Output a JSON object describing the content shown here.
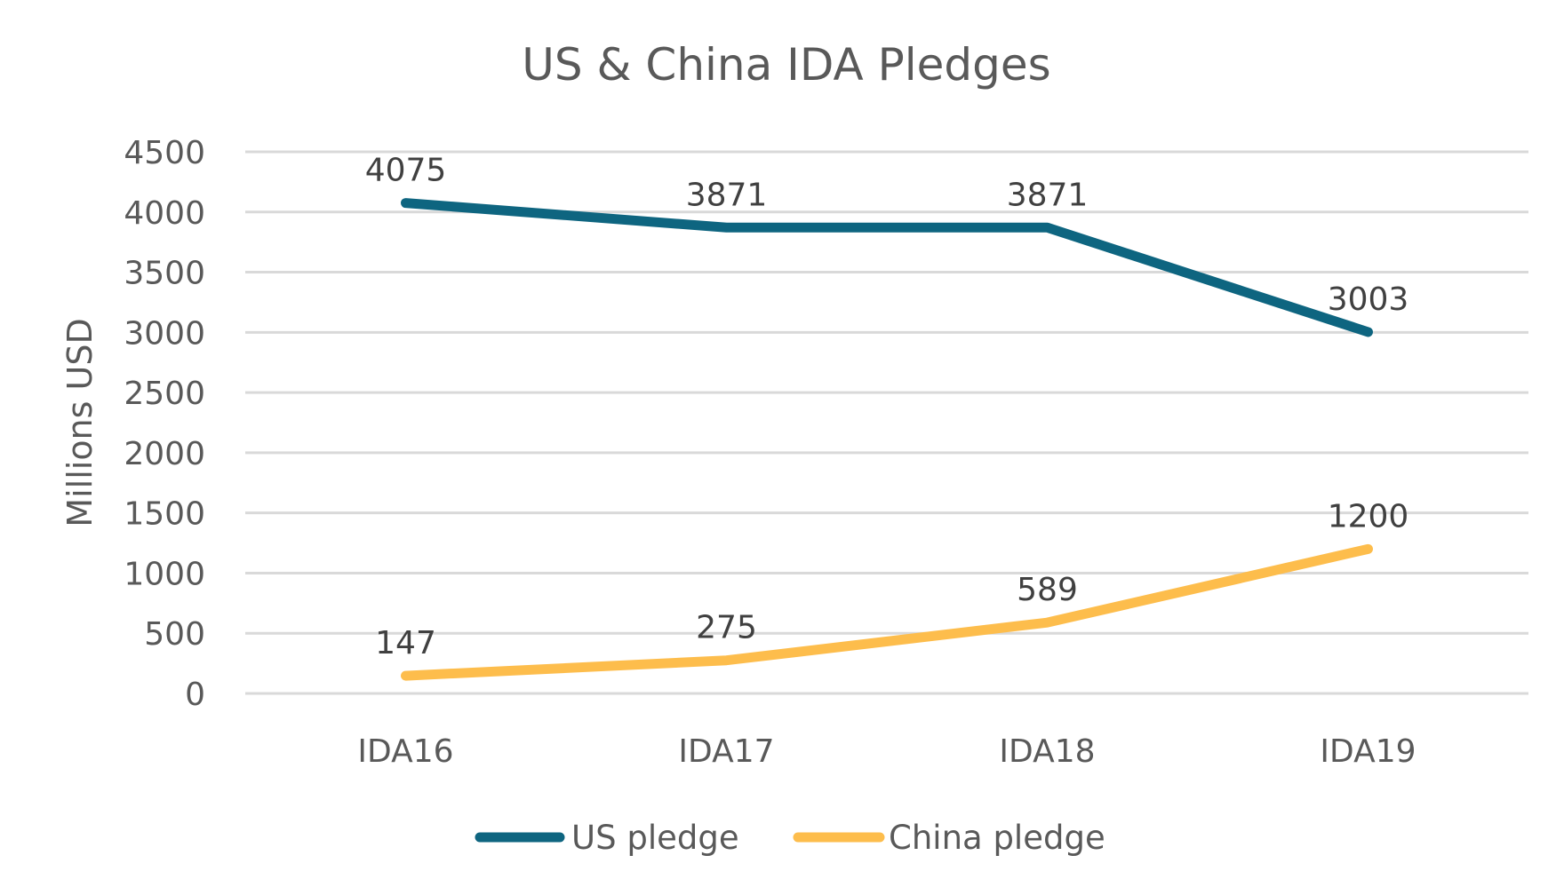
{
  "chart_data": {
    "type": "line",
    "title": "US & China IDA Pledges",
    "xlabel": "",
    "ylabel": "Millions USD",
    "categories": [
      "IDA16",
      "IDA17",
      "IDA18",
      "IDA19"
    ],
    "ylim": [
      0,
      4500
    ],
    "yticks": [
      0,
      500,
      1000,
      1500,
      2000,
      2500,
      3000,
      3500,
      4000,
      4500
    ],
    "grid": true,
    "legend_position": "bottom",
    "series": [
      {
        "name": "US pledge",
        "color": "#0e6580",
        "values": [
          4075,
          3871,
          3871,
          3003
        ]
      },
      {
        "name": "China pledge",
        "color": "#fdbd4c",
        "values": [
          147,
          275,
          589,
          1200
        ]
      }
    ]
  }
}
